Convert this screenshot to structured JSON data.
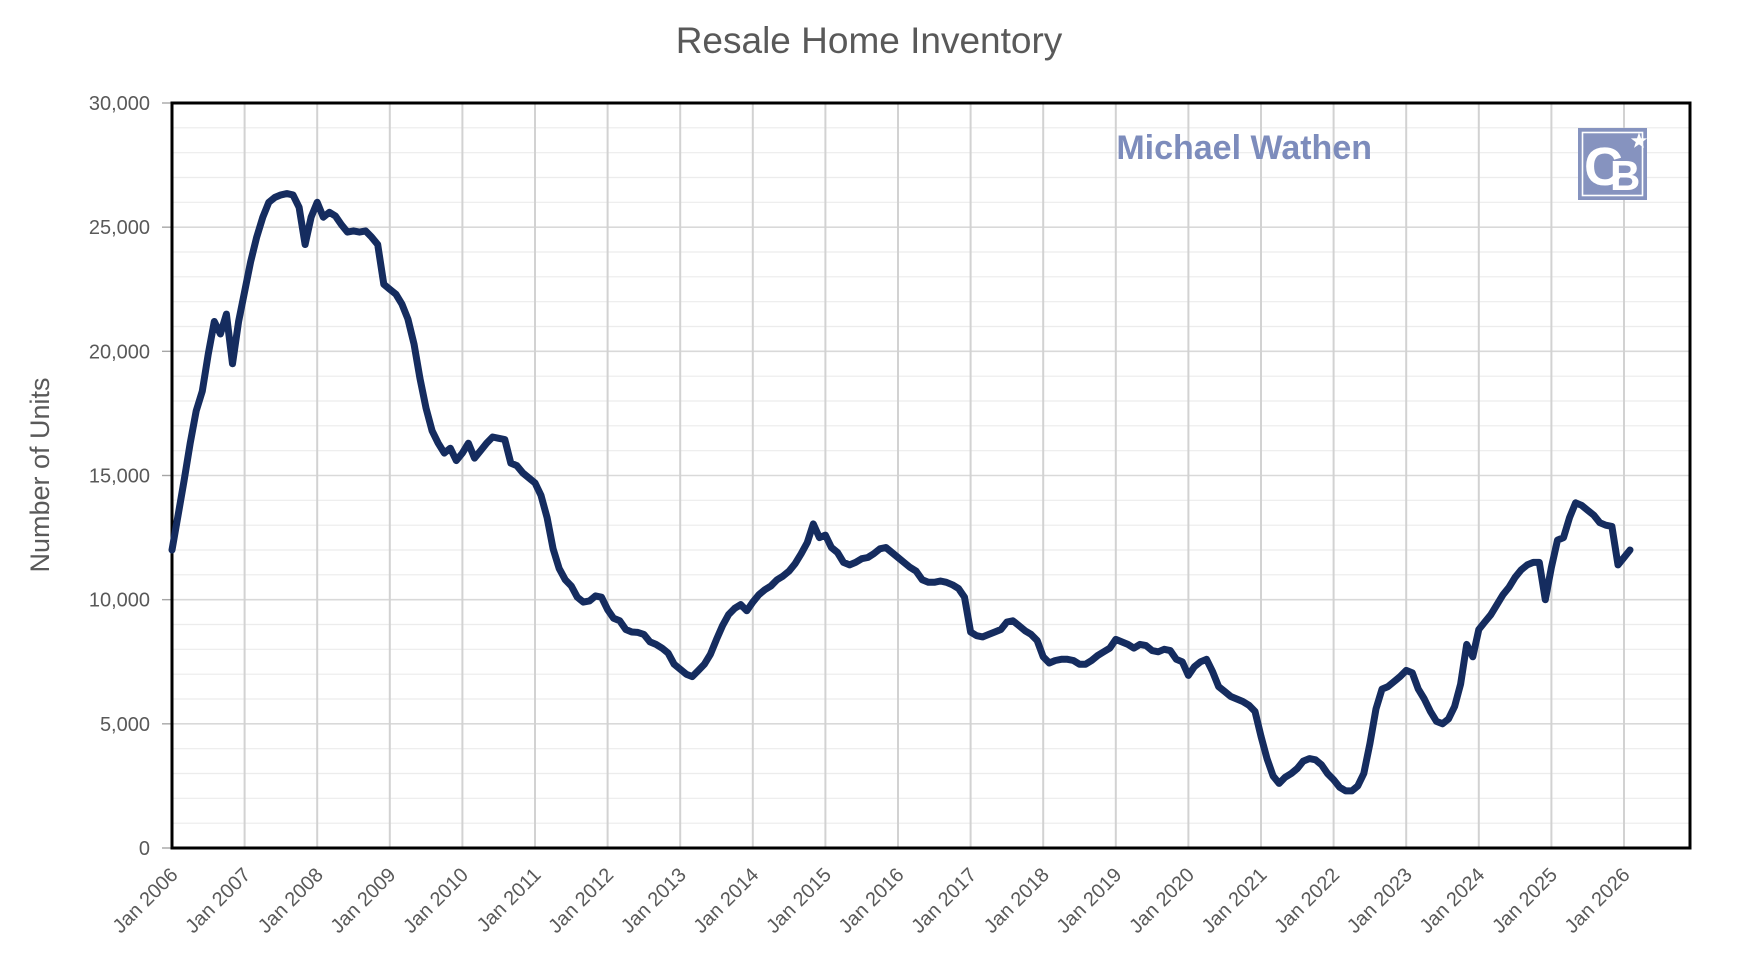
{
  "chart_data": {
    "type": "line",
    "title": "Resale Home Inventory",
    "ylabel": "Number of Units",
    "xlabel": "",
    "ylim": [
      0,
      30000
    ],
    "y_major_step": 5000,
    "y_minor_step": 1000,
    "grid": true,
    "legend_position": "none",
    "y_tick_labels": [
      "0",
      "5,000",
      "10,000",
      "15,000",
      "20,000",
      "25,000",
      "30,000"
    ],
    "x_tick_labels": [
      "Jan 2006",
      "Jan 2007",
      "Jan 2008",
      "Jan 2009",
      "Jan 2010",
      "Jan 2011",
      "Jan 2012",
      "Jan 2013",
      "Jan 2014",
      "Jan 2015",
      "Jan 2016",
      "Jan 2017",
      "Jan 2018",
      "Jan 2019",
      "Jan 2020",
      "Jan 2021",
      "Jan 2022",
      "Jan 2023",
      "Jan 2024",
      "Jan 2025",
      "Jan 2026"
    ],
    "series": [
      {
        "name": "Resale Home Inventory",
        "frequency": "monthly",
        "start": "2006-01",
        "end": "2026-02",
        "values": [
          12000,
          13400,
          14800,
          16300,
          17600,
          18400,
          19900,
          21200,
          20700,
          21500,
          19500,
          21200,
          22400,
          23600,
          24600,
          25400,
          26000,
          26200,
          26300,
          26350,
          26300,
          25800,
          24300,
          25400,
          26000,
          25400,
          25600,
          25450,
          25100,
          24800,
          24850,
          24800,
          24850,
          24600,
          24300,
          22700,
          22500,
          22300,
          21900,
          21300,
          20300,
          18900,
          17700,
          16800,
          16300,
          15900,
          16100,
          15600,
          15900,
          16300,
          15700,
          16000,
          16300,
          16550,
          16500,
          16450,
          15500,
          15400,
          15100,
          14900,
          14700,
          14200,
          13300,
          12050,
          11250,
          10800,
          10550,
          10100,
          9900,
          9950,
          10150,
          10100,
          9600,
          9250,
          9150,
          8800,
          8700,
          8680,
          8600,
          8300,
          8200,
          8050,
          7850,
          7400,
          7200,
          7000,
          6900,
          7150,
          7400,
          7800,
          8400,
          8950,
          9400,
          9650,
          9800,
          9550,
          9900,
          10200,
          10400,
          10550,
          10800,
          10950,
          11150,
          11450,
          11850,
          12300,
          13050,
          12500,
          12600,
          12100,
          11900,
          11500,
          11400,
          11500,
          11650,
          11700,
          11850,
          12050,
          12100,
          11900,
          11700,
          11500,
          11300,
          11150,
          10800,
          10700,
          10700,
          10750,
          10700,
          10600,
          10450,
          10100,
          8700,
          8550,
          8500,
          8600,
          8700,
          8800,
          9100,
          9150,
          8950,
          8750,
          8600,
          8350,
          7700,
          7450,
          7550,
          7600,
          7600,
          7550,
          7400,
          7400,
          7550,
          7750,
          7900,
          8050,
          8400,
          8300,
          8200,
          8050,
          8200,
          8150,
          7950,
          7900,
          8000,
          7950,
          7600,
          7500,
          6950,
          7300,
          7500,
          7600,
          7100,
          6500,
          6300,
          6100,
          6000,
          5900,
          5750,
          5500,
          4500,
          3600,
          2900,
          2600,
          2850,
          3000,
          3200,
          3500,
          3600,
          3550,
          3350,
          3000,
          2750,
          2450,
          2300,
          2300,
          2500,
          3000,
          4200,
          5600,
          6400,
          6500,
          6700,
          6900,
          7150,
          7050,
          6400,
          6000,
          5500,
          5100,
          5000,
          5200,
          5700,
          6600,
          8200,
          7700,
          8800,
          9100,
          9400,
          9800,
          10200,
          10500,
          10900,
          11200,
          11400,
          11500,
          11500,
          10000,
          11300,
          12400,
          12500,
          13300,
          13900,
          13800,
          13600,
          13400,
          13100,
          13000,
          12950,
          11400,
          11700,
          12000
        ]
      }
    ]
  },
  "branding": {
    "watermark": "Michael Wathen",
    "logo": "coldwell-banker-cb-star-logo",
    "logo_letter_c": "C",
    "logo_letter_b": "B"
  },
  "colors": {
    "line": "#152C5F",
    "title_text": "#595959",
    "axis_text": "#595959",
    "watermark_text": "#7D8CBC",
    "logo_bg": "#8693BF",
    "logo_glyph": "#FFFFFF",
    "grid_vertical": "#D2D2D2",
    "grid_major": "#D9D9D9",
    "grid_minor": "#ECECEC",
    "plot_border": "#000000",
    "background": "#FFFFFF"
  }
}
